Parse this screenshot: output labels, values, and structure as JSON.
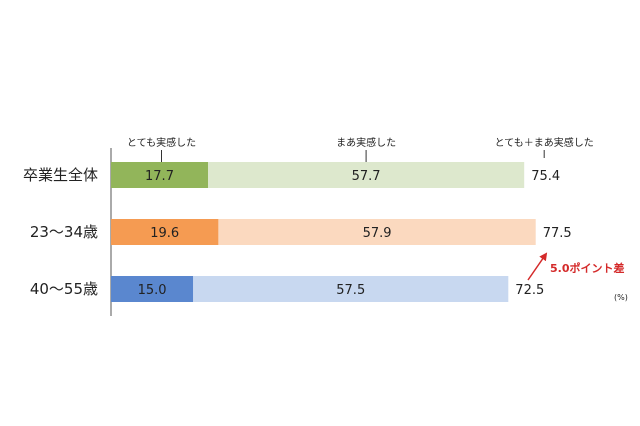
{
  "chart_data": {
    "type": "bar",
    "orientation": "horizontal",
    "stacked": true,
    "categories": [
      "卒業生全体",
      "23〜34歳",
      "40〜55歳"
    ],
    "series": [
      {
        "name": "とても実感した",
        "values": [
          17.7,
          19.6,
          15.0
        ],
        "colors": [
          "#92b55a",
          "#f59b52",
          "#5a87cf"
        ]
      },
      {
        "name": "まあ実感した",
        "values": [
          57.7,
          57.9,
          57.5
        ],
        "colors": [
          "#dde8cd",
          "#fbd9bf",
          "#c8d8f0"
        ]
      }
    ],
    "totals": {
      "name": "とても＋まあ実感した",
      "values": [
        75.4,
        77.5,
        72.5
      ]
    },
    "unit": "(%)",
    "annotation": {
      "text": "5.0ポイント差",
      "color": "#d42a2a"
    },
    "xlim": [
      0,
      100
    ],
    "grid": false
  }
}
